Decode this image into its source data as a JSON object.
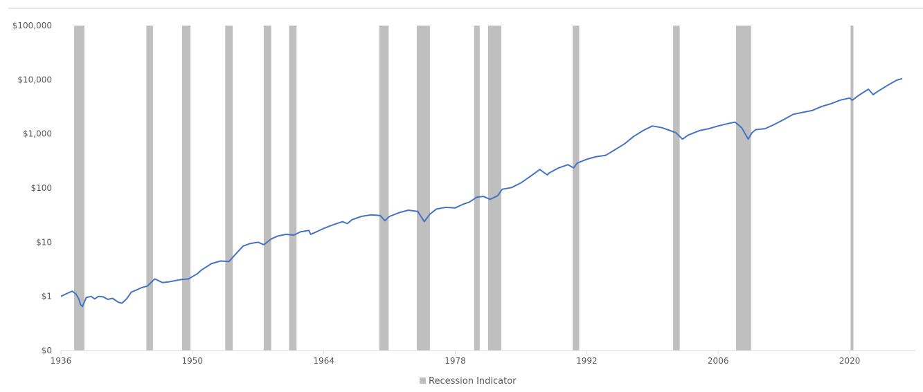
{
  "chart_data": {
    "type": "line",
    "title": "",
    "xlabel": "",
    "ylabel": "",
    "x_axis": {
      "min": 1936,
      "max": 2027,
      "ticks": [
        1936,
        1950,
        1964,
        1978,
        1992,
        2006,
        2020
      ],
      "tick_labels": [
        "1936",
        "1950",
        "1964",
        "1978",
        "1992",
        "2006",
        "2020"
      ]
    },
    "y_axis": {
      "scale": "log",
      "ticks": [
        0,
        1,
        10,
        100,
        1000,
        10000,
        100000
      ],
      "tick_labels": [
        "$0",
        "$1",
        "$10",
        "$100",
        "$1,000",
        "$10,000",
        "$100,000"
      ]
    },
    "grid": false,
    "legend_position": "bottom-center",
    "legend": [
      {
        "label": "Recession Indicator",
        "color": "#bfbfbf"
      }
    ],
    "series": [
      {
        "name": "",
        "color": "#4472c4",
        "x": [
          1936.0,
          1936.5,
          1937.2,
          1937.6,
          1937.9,
          1938.1,
          1938.3,
          1938.7,
          1939.2,
          1939.6,
          1940.0,
          1940.5,
          1941.0,
          1941.5,
          1942.1,
          1942.5,
          1943.0,
          1943.5,
          1944.0,
          1944.6,
          1945.2,
          1946.0,
          1946.8,
          1947.5,
          1948.2,
          1948.9,
          1949.6,
          1950.5,
          1951.0,
          1951.5,
          1952.0,
          1953.0,
          1953.9,
          1954.6,
          1955.4,
          1956.2,
          1957.0,
          1957.6,
          1958.4,
          1959.1,
          1960.0,
          1960.8,
          1961.5,
          1962.4,
          1962.6,
          1963.2,
          1964.0,
          1965.0,
          1966.0,
          1966.5,
          1967.0,
          1968.0,
          1969.0,
          1970.0,
          1970.5,
          1971.0,
          1972.0,
          1973.0,
          1974.0,
          1974.7,
          1975.3,
          1976.0,
          1977.0,
          1978.0,
          1978.8,
          1979.5,
          1980.3,
          1981.0,
          1981.7,
          1982.5,
          1983.0,
          1984.0,
          1985.0,
          1986.0,
          1987.0,
          1987.8,
          1988.0,
          1989.0,
          1990.0,
          1990.6,
          1991.0,
          1992.0,
          1993.0,
          1994.0,
          1995.0,
          1996.0,
          1997.0,
          1998.0,
          1999.0,
          2000.0,
          2000.6,
          2001.5,
          2002.2,
          2002.8,
          2004.0,
          2005.0,
          2006.0,
          2007.0,
          2007.8,
          2008.5,
          2009.2,
          2009.6,
          2010.0,
          2011.0,
          2012.0,
          2013.0,
          2014.0,
          2015.0,
          2016.0,
          2017.0,
          2018.0,
          2019.0,
          2020.0,
          2020.3,
          2021.0,
          2022.0,
          2022.5,
          2023.0,
          2024.0,
          2025.0,
          2025.6
        ],
        "values": [
          1.0,
          1.1,
          1.25,
          1.1,
          0.9,
          0.7,
          0.65,
          0.95,
          1.0,
          0.9,
          1.0,
          0.98,
          0.88,
          0.92,
          0.78,
          0.75,
          0.9,
          1.2,
          1.3,
          1.45,
          1.55,
          2.1,
          1.8,
          1.85,
          1.95,
          2.05,
          2.1,
          2.6,
          3.1,
          3.5,
          4.0,
          4.5,
          4.4,
          6.0,
          8.5,
          9.5,
          10.0,
          9.0,
          11.5,
          13.0,
          14.0,
          13.5,
          15.5,
          16.5,
          14.0,
          15.5,
          18.0,
          21.0,
          24.0,
          22.0,
          26.0,
          30.0,
          32.0,
          31.0,
          25.0,
          30.0,
          35.0,
          39.0,
          37.0,
          24.0,
          33.0,
          41.0,
          44.0,
          43.0,
          50.0,
          55.0,
          68.0,
          70.0,
          62.0,
          72.0,
          95.0,
          102.0,
          125.0,
          165.0,
          220.0,
          175.0,
          190.0,
          235.0,
          270.0,
          235.0,
          290.0,
          340.0,
          380.0,
          400.0,
          510.0,
          650.0,
          900.0,
          1150.0,
          1400.0,
          1300.0,
          1200.0,
          1050.0,
          800.0,
          950.0,
          1150.0,
          1250.0,
          1400.0,
          1550.0,
          1650.0,
          1300.0,
          800.0,
          1050.0,
          1200.0,
          1250.0,
          1500.0,
          1850.0,
          2300.0,
          2500.0,
          2700.0,
          3200.0,
          3600.0,
          4200.0,
          4600.0,
          4200.0,
          5200.0,
          6700.0,
          5300.0,
          6100.0,
          7800.0,
          9800.0,
          10500.0
        ]
      }
    ],
    "recessions": [
      [
        1937.4,
        1938.5
      ],
      [
        1945.1,
        1945.8
      ],
      [
        1948.9,
        1949.8
      ],
      [
        1953.5,
        1954.3
      ],
      [
        1957.6,
        1958.4
      ],
      [
        1960.3,
        1961.1
      ],
      [
        1969.9,
        1970.9
      ],
      [
        1973.9,
        1975.3
      ],
      [
        1980.0,
        1980.6
      ],
      [
        1981.5,
        1982.9
      ],
      [
        1990.5,
        1991.2
      ],
      [
        2001.2,
        2001.9
      ],
      [
        2007.9,
        2009.5
      ],
      [
        2020.1,
        2020.4
      ]
    ]
  }
}
